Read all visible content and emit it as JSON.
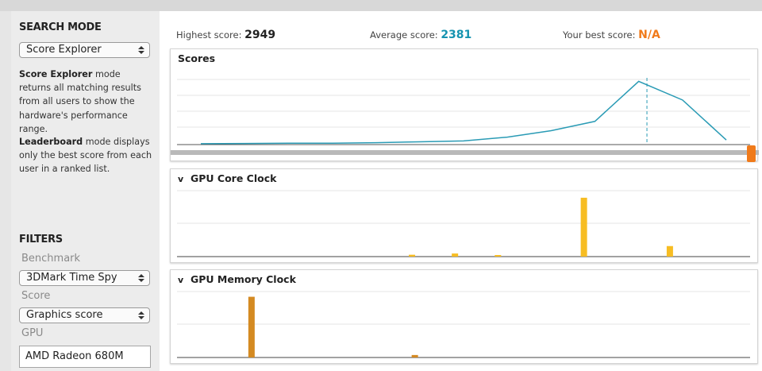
{
  "sidebar": {
    "search_mode_title": "SEARCH MODE",
    "mode_select_value": "Score Explorer",
    "score_explorer_term": "Score Explorer",
    "score_explorer_desc": " mode returns all matching results from all users to show the hardware's performance range.",
    "leaderboard_term": "Leaderboard",
    "leaderboard_desc": " mode displays only the best score from each user in a ranked list.",
    "filters_title": "FILTERS",
    "benchmark_label": "Benchmark",
    "benchmark_value": "3DMark Time Spy",
    "score_label": "Score",
    "score_value": "Graphics score",
    "gpu_label": "GPU",
    "gpu_value": "AMD Radeon 680M"
  },
  "stats": {
    "highest_label": "Highest score: ",
    "highest_value": "2949",
    "average_label": "Average score: ",
    "average_value": "2381",
    "best_label": "Your best score: ",
    "best_value": "N/A"
  },
  "scores_chart": {
    "title": "Scores",
    "line_color": "#2a9bb5",
    "points": [
      0.01,
      0.012,
      0.015,
      0.015,
      0.02,
      0.03,
      0.04,
      0.08,
      0.15,
      0.25,
      0.68,
      0.48,
      0.05
    ],
    "avg_marker_position": 0.82,
    "slider_color": "#f07a1a"
  },
  "core_clock_chart": {
    "title": "GPU Core Clock",
    "chevron": "v",
    "bar_color": "#f7bd23",
    "bars": [
      {
        "pos": 0.41,
        "value": 0.03
      },
      {
        "pos": 0.485,
        "value": 0.05
      },
      {
        "pos": 0.56,
        "value": 0.025
      },
      {
        "pos": 0.71,
        "value": 0.95
      },
      {
        "pos": 0.86,
        "value": 0.17
      }
    ]
  },
  "memory_clock_chart": {
    "title": "GPU Memory Clock",
    "chevron": "v",
    "bar_color": "#d48a22",
    "bars": [
      {
        "pos": 0.13,
        "value": 0.98
      },
      {
        "pos": 0.415,
        "value": 0.04
      }
    ]
  },
  "colors": {
    "average_accent": "#1593b0",
    "best_accent": "#f07a1a"
  }
}
